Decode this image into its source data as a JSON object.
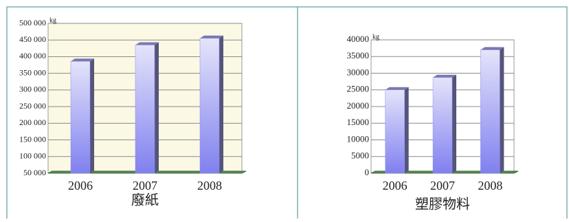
{
  "chart_data": [
    {
      "type": "bar",
      "title": "廢紙",
      "y_label": "kg",
      "categories": [
        "2006",
        "2007",
        "2008"
      ],
      "values": [
        386000,
        435000,
        455000
      ],
      "color": "#8c8cf0",
      "ylim": [
        50000,
        500000
      ],
      "yticks": [
        {
          "value": 50000,
          "label": "50 000"
        },
        {
          "value": 100000,
          "label": "100 000"
        },
        {
          "value": 150000,
          "label": "150 000"
        },
        {
          "value": 200000,
          "label": "200 000"
        },
        {
          "value": 250000,
          "label": "250 000"
        },
        {
          "value": 300000,
          "label": "300 000"
        },
        {
          "value": 350000,
          "label": "350 000"
        },
        {
          "value": 400000,
          "label": "400 000"
        },
        {
          "value": 450000,
          "label": "450 000"
        },
        {
          "value": 500000,
          "label": "500 000"
        }
      ],
      "grid": true
    },
    {
      "type": "bar",
      "title": "塑膠物料",
      "y_label": "kg",
      "categories": [
        "2006",
        "2007",
        "2008"
      ],
      "values": [
        25000,
        28700,
        37000
      ],
      "color": "#8c8cf0",
      "ylim": [
        0,
        40000
      ],
      "yticks": [
        0,
        5000,
        10000,
        15000,
        20000,
        25000,
        30000,
        35000,
        40000
      ],
      "grid": true
    }
  ]
}
